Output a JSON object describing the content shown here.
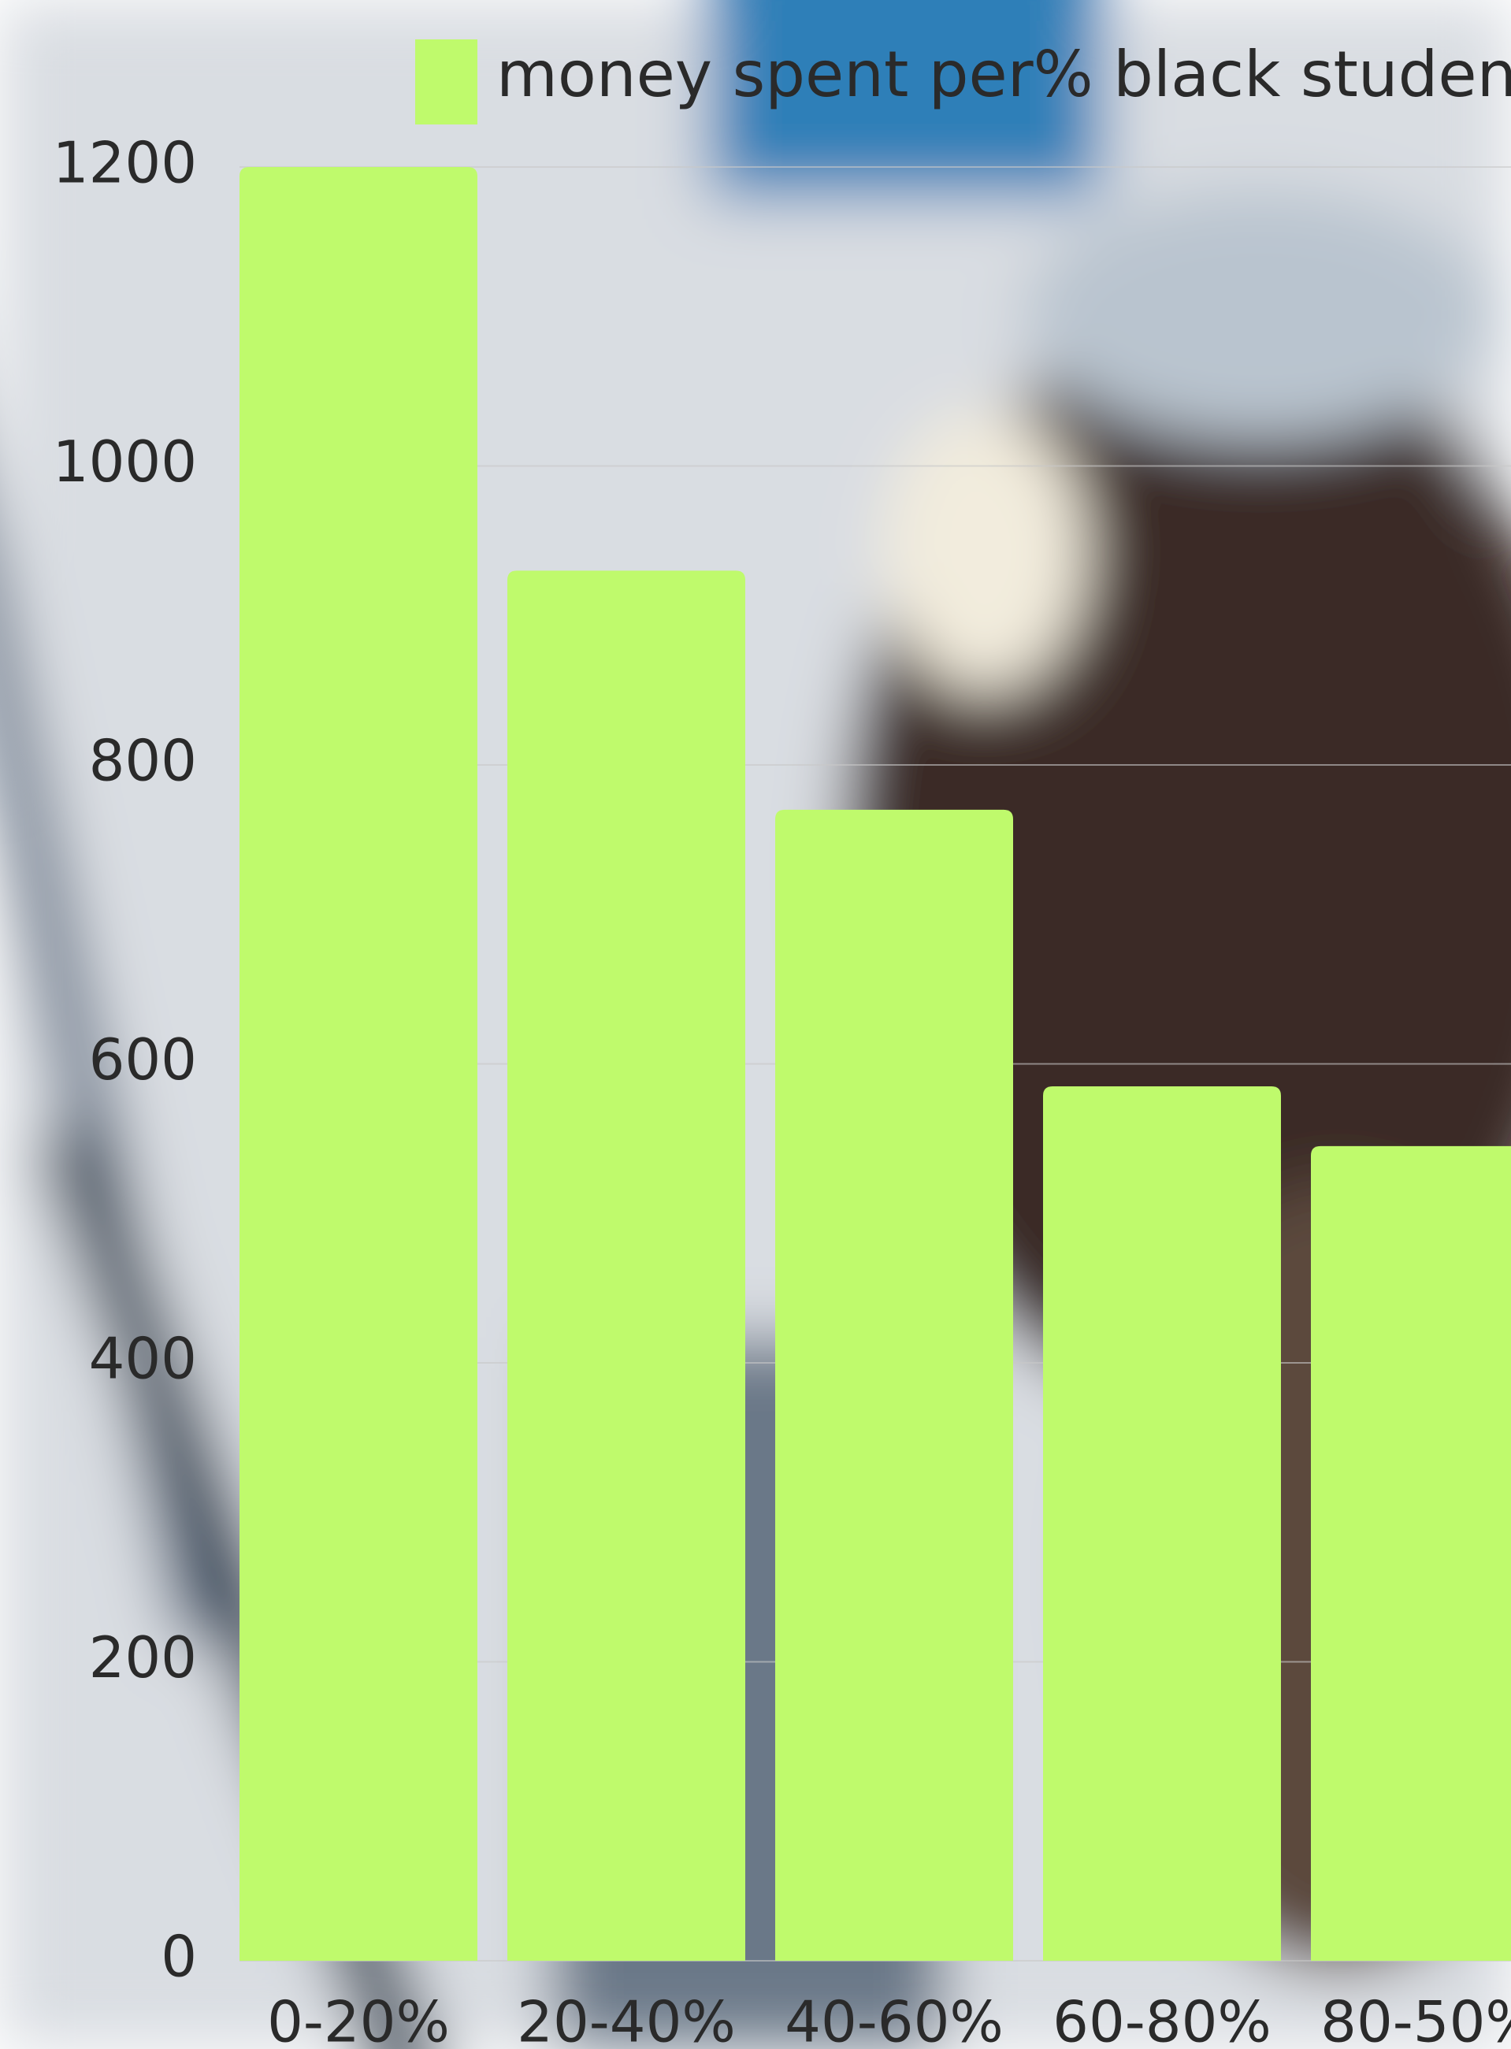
{
  "chart_data": {
    "type": "bar",
    "legend": "money spent per% black students",
    "categories": [
      "0-20%",
      "20-40%",
      "40-60%",
      "60-80%",
      "80-50%"
    ],
    "values": [
      1200,
      930,
      770,
      585,
      545
    ],
    "color": "#bffa6c",
    "ylim": [
      0,
      1200
    ],
    "yticks": [
      0,
      200,
      400,
      600,
      800,
      1000,
      1200
    ],
    "grid": true
  }
}
